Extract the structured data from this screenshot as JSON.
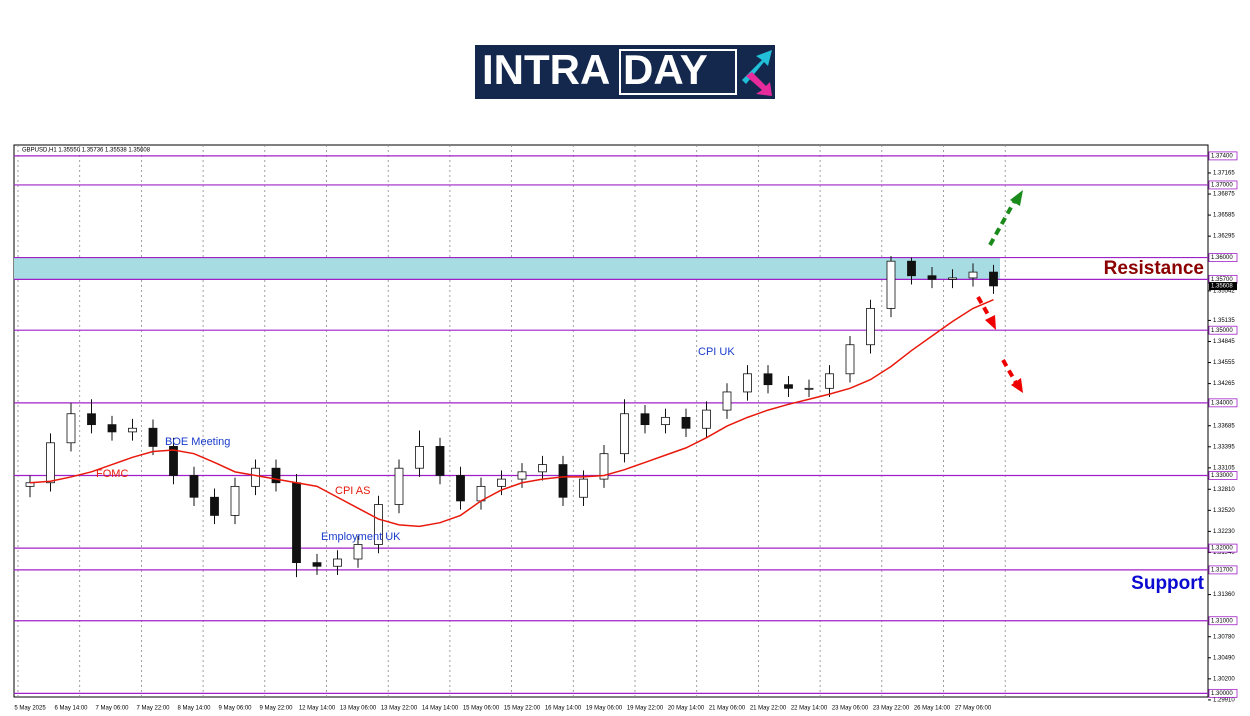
{
  "logo": {
    "text_a": "INTRA",
    "text_b": "DAY"
  },
  "chart_data": {
    "type": "candlestick",
    "title": "GBPUSD,H1  1.35550 1.35736 1.35538 1.35608",
    "categories": [
      "5 May 2025",
      null,
      "6 May 14:00",
      null,
      "7 May 06:00",
      null,
      "7 May 22:00",
      null,
      "8 May 14:00",
      null,
      "9 May 06:00",
      null,
      "9 May 22:00",
      null,
      "12 May 14:00",
      null,
      "13 May 06:00",
      null,
      "13 May 22:00",
      null,
      "14 May 14:00",
      null,
      "15 May 06:00",
      null,
      "15 May 22:00",
      null,
      "16 May 14:00",
      null,
      "19 May 06:00",
      null,
      "19 May 22:00",
      null,
      "20 May 14:00",
      null,
      "21 May 06:00",
      null,
      "21 May 22:00",
      null,
      "22 May 14:00",
      null,
      "23 May 06:00",
      null,
      "23 May 22:00",
      null,
      "26 May 14:00",
      null,
      "27 May 06:00",
      null
    ],
    "open": [
      1.3285,
      1.329,
      1.3345,
      1.3385,
      1.337,
      1.336,
      1.3365,
      1.334,
      1.33,
      1.327,
      1.3245,
      1.3285,
      1.331,
      1.329,
      1.318,
      1.3175,
      1.3185,
      1.3205,
      1.326,
      1.331,
      1.334,
      1.33,
      1.3265,
      1.3285,
      1.3295,
      1.3305,
      1.3315,
      1.327,
      1.3295,
      1.333,
      1.3385,
      1.337,
      1.338,
      1.3365,
      1.339,
      1.3415,
      1.344,
      1.3425,
      1.342,
      1.342,
      1.344,
      1.348,
      1.353,
      1.3595,
      1.3575,
      1.357,
      1.3572,
      1.358
    ],
    "high": [
      1.33,
      1.3358,
      1.34,
      1.3405,
      1.3382,
      1.3378,
      1.3377,
      1.3352,
      1.3312,
      1.3282,
      1.3297,
      1.3322,
      1.3322,
      1.3302,
      1.3192,
      1.3197,
      1.3217,
      1.3272,
      1.3322,
      1.3362,
      1.3352,
      1.3312,
      1.3297,
      1.3307,
      1.3317,
      1.3327,
      1.3327,
      1.3307,
      1.3342,
      1.3405,
      1.3397,
      1.3392,
      1.3392,
      1.3402,
      1.3427,
      1.3452,
      1.3452,
      1.3437,
      1.3432,
      1.3452,
      1.3492,
      1.3542,
      1.3602,
      1.36,
      1.3587,
      1.3584,
      1.3592,
      1.359
    ],
    "low": [
      1.327,
      1.3278,
      1.3333,
      1.3358,
      1.3348,
      1.3348,
      1.3328,
      1.3288,
      1.3258,
      1.3233,
      1.3233,
      1.3273,
      1.3278,
      1.316,
      1.3163,
      1.3163,
      1.3173,
      1.3193,
      1.3248,
      1.3298,
      1.3288,
      1.3253,
      1.3253,
      1.3273,
      1.3283,
      1.3293,
      1.3258,
      1.3258,
      1.3283,
      1.3318,
      1.3358,
      1.3358,
      1.3353,
      1.3353,
      1.3378,
      1.3403,
      1.3413,
      1.3408,
      1.3408,
      1.3408,
      1.3428,
      1.3468,
      1.3518,
      1.3563,
      1.3558,
      1.3558,
      1.356,
      1.355
    ],
    "close": [
      1.329,
      1.3345,
      1.3385,
      1.337,
      1.336,
      1.3365,
      1.334,
      1.33,
      1.327,
      1.3245,
      1.3285,
      1.331,
      1.329,
      1.318,
      1.3175,
      1.3185,
      1.3205,
      1.326,
      1.331,
      1.334,
      1.33,
      1.3265,
      1.3285,
      1.3295,
      1.3305,
      1.3315,
      1.327,
      1.3295,
      1.333,
      1.3385,
      1.337,
      1.338,
      1.3365,
      1.339,
      1.3415,
      1.344,
      1.3425,
      1.342,
      1.342,
      1.344,
      1.348,
      1.353,
      1.3595,
      1.3575,
      1.357,
      1.3572,
      1.358,
      1.3561
    ],
    "ma": {
      "color": "#e8190c",
      "values": [
        1.329,
        1.3292,
        1.3298,
        1.3305,
        1.3315,
        1.3325,
        1.3333,
        1.3335,
        1.333,
        1.3318,
        1.3305,
        1.33,
        1.3295,
        1.329,
        1.3285,
        1.327,
        1.3255,
        1.324,
        1.3232,
        1.323,
        1.3235,
        1.3245,
        1.3265,
        1.328,
        1.329,
        1.3295,
        1.3298,
        1.3298,
        1.33,
        1.3308,
        1.3318,
        1.3328,
        1.3338,
        1.3352,
        1.3368,
        1.338,
        1.339,
        1.3398,
        1.3405,
        1.3412,
        1.342,
        1.3432,
        1.345,
        1.3472,
        1.3492,
        1.3512,
        1.353,
        1.3542
      ]
    },
    "ylim": [
      1.2995,
      1.3755
    ],
    "yticks": [
      {
        "value": 1.374,
        "label": "1.37400"
      },
      {
        "value": 1.37,
        "label": "1.37000"
      },
      {
        "value": 1.36,
        "label": "1.36000"
      },
      {
        "value": 1.357,
        "label": "1.35700"
      },
      {
        "value": 1.35,
        "label": "1.35000"
      },
      {
        "value": 1.34,
        "label": "1.34000"
      },
      {
        "value": 1.33,
        "label": "1.33000"
      },
      {
        "value": 1.32,
        "label": "1.32000"
      },
      {
        "value": 1.317,
        "label": "1.31700"
      },
      {
        "value": 1.31,
        "label": "1.31000"
      },
      {
        "value": 1.3,
        "label": "1.30000"
      }
    ],
    "level_color": "#a020c8",
    "scale_ticks": [
      1.37165,
      1.36875,
      1.36585,
      1.36295,
      1.35542,
      1.35135,
      1.34845,
      1.34555,
      1.34265,
      1.33685,
      1.33395,
      1.33105,
      {
        "value": 1.3281,
        "label": "1.32810"
      },
      {
        "value": 1.3252,
        "label": "1.32520"
      },
      {
        "value": 1.3223,
        "label": "1.32230"
      },
      {
        "value": 1.3194,
        "label": "1.31940"
      },
      {
        "value": 1.3136,
        "label": "1.31360"
      },
      {
        "value": 1.3078,
        "label": "1.30780"
      },
      {
        "value": 1.3049,
        "label": "1.30490"
      },
      {
        "value": 1.302,
        "label": "1.30200"
      },
      {
        "value": 1.2991,
        "label": "1.29910"
      }
    ],
    "last_price": {
      "value": 1.35608,
      "label": "1.35608"
    },
    "resistance_zone": [
      1.357,
      1.36
    ],
    "annotations": {
      "fomc": "FOMC",
      "boe": "BOE Meeting",
      "cpi_as": "CPI AS",
      "employment": "Employment UK",
      "cpi_uk": "CPI UK",
      "resistance": "Resistance",
      "support": "Support"
    }
  }
}
